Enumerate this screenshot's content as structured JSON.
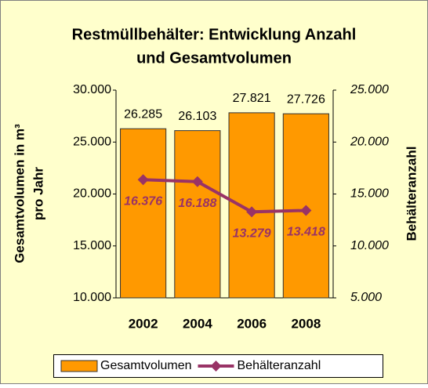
{
  "chart_data": {
    "type": "bar",
    "title": [
      "Restmüllbehälter: Entwicklung Anzahl",
      "und Gesamtvolumen"
    ],
    "ylabel": [
      "Gesamtvolumen in m³",
      "pro Jahr"
    ],
    "y2label": "Behälteranzahl",
    "categories": [
      "2002",
      "2004",
      "2006",
      "2008"
    ],
    "series": [
      {
        "name": "Gesamtvolumen",
        "type": "bar",
        "color": "#ff9900",
        "values": [
          26285,
          26103,
          27821,
          27726
        ],
        "value_labels": [
          "26.285",
          "26.103",
          "27.821",
          "27.726"
        ]
      },
      {
        "name": "Behälteranzahl",
        "type": "line",
        "axis": "y2",
        "color": "#993366",
        "values": [
          16376,
          16188,
          13279,
          13418
        ],
        "value_labels": [
          "16.376",
          "16.188",
          "13.279",
          "13.418"
        ]
      }
    ],
    "ylim": [
      10000,
      30000
    ],
    "yticks": [
      {
        "value": 10000,
        "label": "10.000"
      },
      {
        "value": 15000,
        "label": "15.000"
      },
      {
        "value": 20000,
        "label": "20.000"
      },
      {
        "value": 25000,
        "label": "25.000"
      },
      {
        "value": 30000,
        "label": "30.000"
      }
    ],
    "y2lim": [
      5000,
      25000
    ],
    "y2ticks": [
      {
        "value": 5000,
        "label": "5.000"
      },
      {
        "value": 10000,
        "label": "10.000"
      },
      {
        "value": 15000,
        "label": "15.000"
      },
      {
        "value": 20000,
        "label": "20.000"
      },
      {
        "value": 25000,
        "label": "25.000"
      }
    ],
    "legend": "bottom"
  }
}
